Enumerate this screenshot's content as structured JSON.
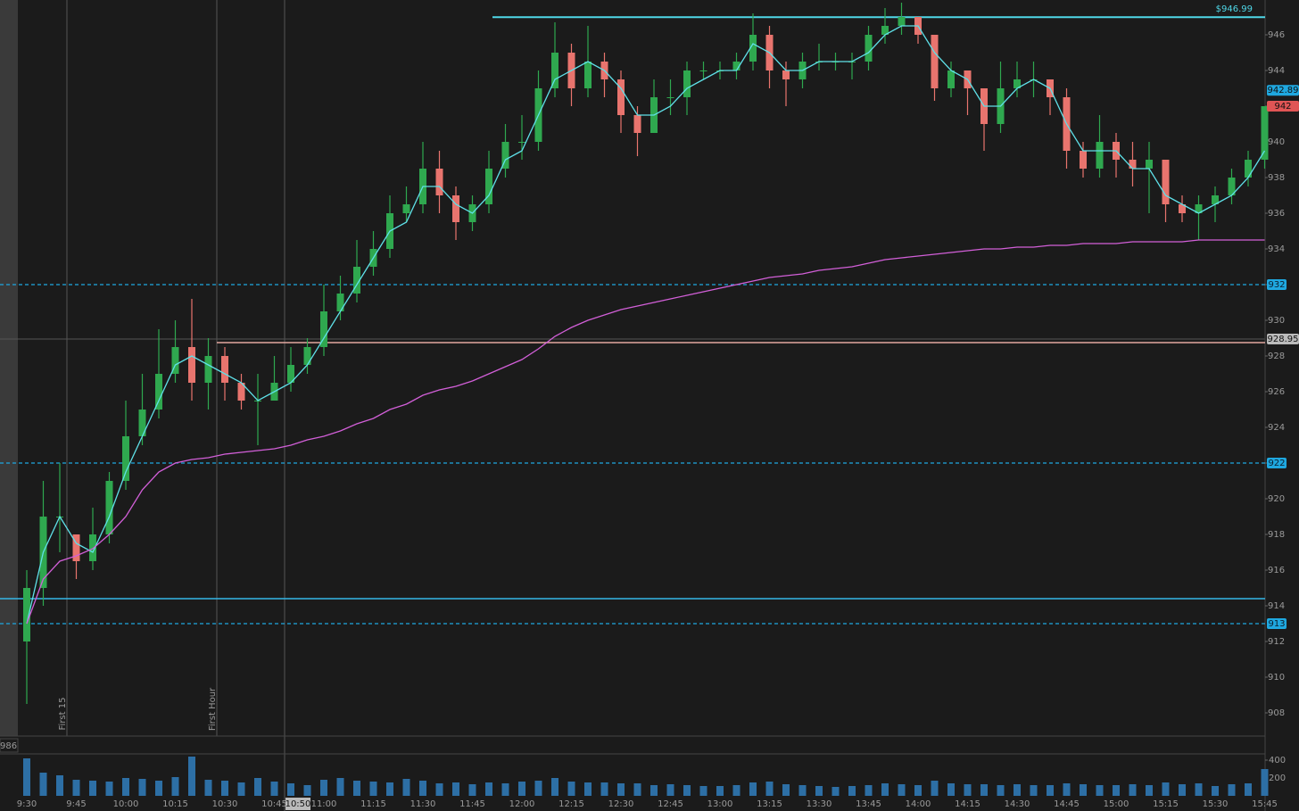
{
  "chart_data": {
    "type": "candlestick",
    "categories": [
      "9:30",
      null,
      null,
      "9:45",
      null,
      null,
      "10:00",
      null,
      null,
      "10:15",
      null,
      null,
      "10:30",
      null,
      null,
      "10:45",
      null,
      null,
      "11:00",
      null,
      null,
      "11:15",
      null,
      null,
      "11:30",
      null,
      null,
      "11:45",
      null,
      null,
      "12:00",
      null,
      null,
      "12:15",
      null,
      null,
      "12:30",
      null,
      null,
      "12:45",
      null,
      null,
      "13:00",
      null,
      null,
      "13:15",
      null,
      null,
      "13:30",
      null,
      null,
      "13:45",
      null,
      null,
      "14:00",
      null,
      null,
      "14:15",
      null,
      null,
      "14:30",
      null,
      null,
      "14:45",
      null,
      null,
      "15:00",
      null,
      null,
      "15:15",
      null,
      null,
      "15:30",
      null,
      null,
      "15:45"
    ],
    "open": [
      912,
      915,
      919,
      918,
      916.5,
      918,
      921,
      923.5,
      925,
      927,
      928.5,
      926.5,
      928,
      926.5,
      925.5,
      925.5,
      926.5,
      927.5,
      928.5,
      930.5,
      931.5,
      933,
      934,
      936,
      936.5,
      938.5,
      937,
      935.5,
      936.5,
      938.5,
      940,
      940,
      943,
      945,
      943,
      944.5,
      943.5,
      941.5,
      940.5,
      942.5,
      942.5,
      944,
      944,
      944,
      944.5,
      946,
      944,
      943.5,
      944.5,
      944.5,
      944.5,
      944.5,
      946,
      946.5,
      947,
      946,
      943,
      944,
      943,
      941,
      943,
      943.5,
      943.5,
      942.5,
      939.5,
      938.5,
      940,
      939,
      938.5,
      939,
      936.5,
      936,
      936.5,
      937,
      938,
      939
    ],
    "high": [
      916,
      921,
      922,
      918,
      919.5,
      921.5,
      925.5,
      927,
      929.5,
      930,
      931.2,
      929,
      928.5,
      927,
      927,
      928,
      928.5,
      929,
      932,
      932.5,
      934.5,
      935,
      937,
      937.5,
      940,
      939.5,
      937.5,
      937,
      939.5,
      941,
      941.5,
      944,
      946.7,
      945.5,
      946.5,
      945,
      944,
      942,
      943.5,
      943.5,
      944.5,
      944.5,
      944.5,
      945,
      947.2,
      946.5,
      944.5,
      945,
      945.5,
      945,
      945,
      946.5,
      947.5,
      947.8,
      947,
      946,
      944.5,
      944,
      943,
      944.5,
      944.5,
      944.5,
      943.5,
      943,
      940,
      941.5,
      940.5,
      940,
      940,
      939,
      937,
      937,
      937.5,
      938.5,
      939.5,
      942
    ],
    "low": [
      908.5,
      914,
      917,
      915.5,
      916,
      917.5,
      920.5,
      923,
      924.5,
      926.5,
      925.5,
      925,
      925.5,
      925,
      923,
      925.5,
      926,
      927,
      928,
      930,
      931,
      932.5,
      933.5,
      935.5,
      936,
      936,
      934.5,
      935,
      936,
      938,
      939,
      939.5,
      942.5,
      942,
      942.5,
      942.5,
      940.5,
      939.2,
      940.5,
      941.5,
      941.5,
      943.5,
      943.5,
      943.5,
      944,
      943,
      942,
      943,
      944,
      944,
      943.5,
      944,
      945.5,
      946,
      945.5,
      942.3,
      942.5,
      941.5,
      939.5,
      940.5,
      942.5,
      942.5,
      941.5,
      938.5,
      938,
      938,
      938,
      937.5,
      936,
      935.5,
      935.5,
      934.5,
      935.5,
      936.5,
      937.5,
      938.5
    ],
    "close": [
      915,
      919,
      919,
      916.5,
      918,
      921,
      923.5,
      925,
      927,
      928.5,
      926.5,
      928,
      926.5,
      925.5,
      925.5,
      926.5,
      927.5,
      928.5,
      930.5,
      931.5,
      933,
      934,
      936,
      936.5,
      938.5,
      937,
      935.5,
      936.5,
      938.5,
      940,
      940,
      943,
      945,
      943,
      944.5,
      943.5,
      941.5,
      940.5,
      942.5,
      942.5,
      944,
      944,
      944,
      944.5,
      946,
      944,
      943.5,
      944.5,
      944.5,
      944.5,
      944.5,
      946,
      946.5,
      947,
      946,
      943,
      944,
      943,
      941,
      943,
      943.5,
      943.5,
      942.5,
      939.5,
      938.5,
      940,
      939,
      938.5,
      939,
      936.5,
      936,
      936.5,
      937,
      938,
      939,
      942
    ],
    "up_color": "#2fa84f",
    "down_color": "#e8746e",
    "ylim": [
      906.7,
      947.95
    ],
    "yticks": [
      908,
      910,
      912,
      914,
      916,
      918,
      920,
      922,
      924,
      926,
      928,
      930,
      932,
      934,
      936,
      938,
      940,
      942,
      944,
      946
    ],
    "lines": [
      {
        "color": "#5fe0e8",
        "values": [
          913,
          917,
          919,
          917.5,
          917,
          919,
          921.5,
          923.5,
          925.5,
          927.5,
          928,
          927.5,
          927,
          926.5,
          925.5,
          926,
          926.5,
          927.5,
          929,
          930.5,
          932,
          933.5,
          935,
          935.5,
          937.5,
          937.5,
          936.5,
          936,
          937,
          939,
          939.5,
          941.5,
          943.5,
          944,
          944.5,
          944,
          943,
          941.5,
          941.5,
          942,
          943,
          943.5,
          944,
          944,
          945.5,
          945,
          944,
          944,
          944.5,
          944.5,
          944.5,
          945,
          946,
          946.5,
          946.5,
          945,
          944,
          943.5,
          942,
          942,
          943,
          943.5,
          943,
          941,
          939.5,
          939.5,
          939.5,
          938.5,
          938.5,
          937,
          936.5,
          936,
          936.5,
          937,
          938,
          939.5
        ]
      },
      {
        "color": "#d25fd8",
        "values": [
          913,
          915.5,
          916.5,
          916.8,
          917.2,
          918,
          919,
          920.5,
          921.5,
          922,
          922.2,
          922.3,
          922.5,
          922.6,
          922.7,
          922.8,
          923,
          923.3,
          923.5,
          923.8,
          924.2,
          924.5,
          925,
          925.3,
          925.8,
          926.1,
          926.3,
          926.6,
          927,
          927.4,
          927.8,
          928.4,
          929.1,
          929.6,
          930,
          930.3,
          930.6,
          930.8,
          931,
          931.2,
          931.4,
          931.6,
          931.8,
          932,
          932.2,
          932.4,
          932.5,
          932.6,
          932.8,
          932.9,
          933,
          933.2,
          933.4,
          933.5,
          933.6,
          933.7,
          933.8,
          933.9,
          934,
          934,
          934.1,
          934.1,
          934.2,
          934.2,
          934.3,
          934.3,
          934.3,
          934.4,
          934.4,
          934.4,
          934.4,
          934.5,
          934.5,
          934.5,
          934.5,
          934.5
        ]
      }
    ],
    "levels": [
      {
        "value": 932,
        "label": "932",
        "color": "#1fa8e0",
        "dashed": true
      },
      {
        "value": 922,
        "label": "922",
        "color": "#1fa8e0",
        "dashed": true
      },
      {
        "value": 913,
        "label": "913",
        "color": "#1fa8e0",
        "dashed": true
      },
      {
        "value": 914.4,
        "color": "#35b7e8",
        "dashed": false
      },
      {
        "value": 928.75,
        "color": "#e3a8a0",
        "dashed": false
      },
      {
        "value": 946.99,
        "label": "$946.99",
        "color": "#4fd8e8",
        "dashed": false
      }
    ],
    "price_tags": [
      {
        "value": 942.89,
        "label": "942.89",
        "color": "#1fa8e0"
      },
      {
        "value": 942,
        "label": "942",
        "color": "#e05555"
      },
      {
        "value": 928.95,
        "label": "928.95",
        "color": "#bbbbbb"
      }
    ],
    "annotations": [
      "First 15",
      "First Hour",
      "10:50",
      "986"
    ],
    "volume": {
      "color": "#2d6fa5",
      "ylim": [
        0,
        460
      ],
      "yticks": [
        200,
        400
      ],
      "values": [
        420,
        260,
        230,
        180,
        170,
        160,
        200,
        190,
        170,
        210,
        440,
        180,
        170,
        150,
        200,
        160,
        140,
        120,
        180,
        200,
        170,
        160,
        150,
        190,
        170,
        140,
        150,
        130,
        150,
        140,
        160,
        170,
        200,
        160,
        150,
        150,
        140,
        140,
        120,
        130,
        120,
        110,
        110,
        120,
        150,
        160,
        130,
        120,
        110,
        100,
        110,
        120,
        140,
        130,
        120,
        170,
        140,
        130,
        130,
        120,
        130,
        120,
        120,
        140,
        130,
        120,
        120,
        130,
        120,
        150,
        130,
        140,
        110,
        130,
        140,
        300
      ]
    }
  }
}
